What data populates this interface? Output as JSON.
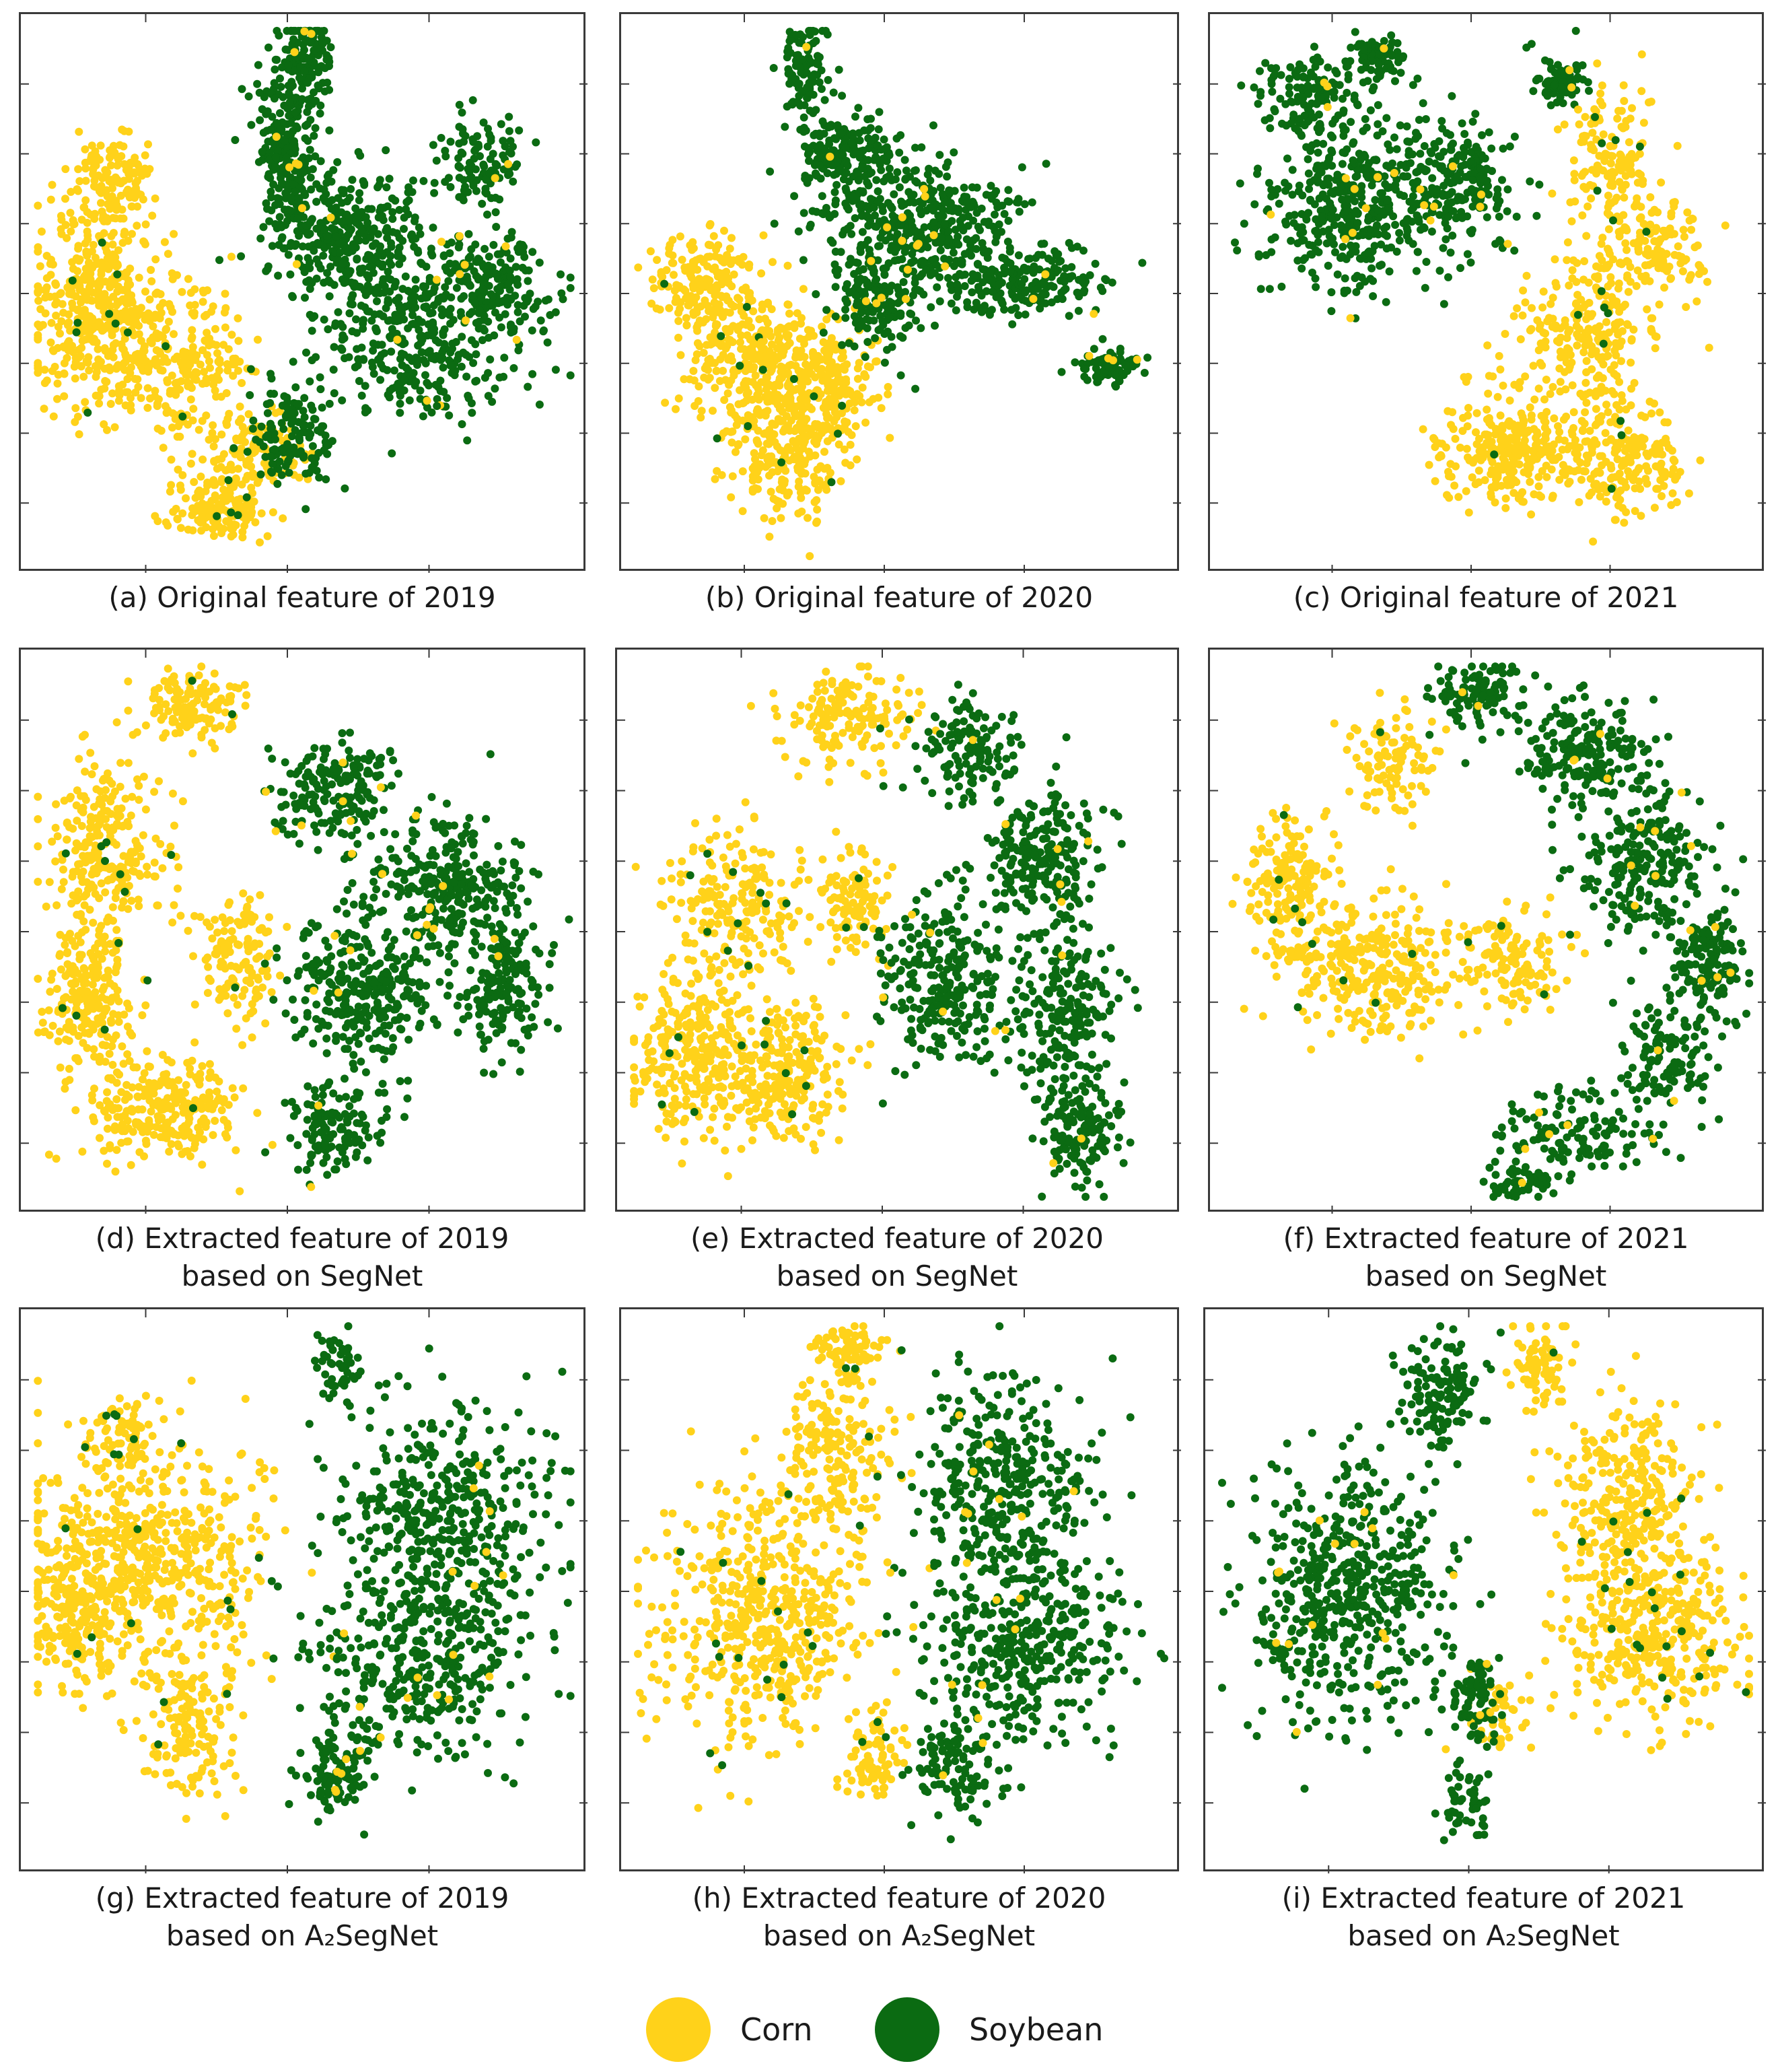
{
  "colors": {
    "corn": "#FFD21A",
    "soybean": "#0B6B12",
    "frame": "#3a3a3a"
  },
  "legend": {
    "items": [
      {
        "label": "Corn",
        "class": "corn"
      },
      {
        "label": "Soybean",
        "class": "soybean"
      }
    ]
  },
  "chart_data": [
    {
      "id": "a",
      "type": "scatter",
      "caption_line1": "(a) Original feature of 2019",
      "caption_line2": "",
      "series": [
        {
          "name": "Corn",
          "clusters": [
            [
              0.17,
              0.3,
              0.05,
              0.06,
              0.5
            ],
            [
              0.13,
              0.52,
              0.08,
              0.12,
              1.6
            ],
            [
              0.27,
              0.62,
              0.09,
              0.1,
              1.0
            ],
            [
              0.35,
              0.88,
              0.06,
              0.04,
              0.6
            ],
            [
              0.42,
              0.78,
              0.06,
              0.05,
              0.4
            ]
          ]
        },
        {
          "name": "Soybean",
          "clusters": [
            [
              0.5,
              0.08,
              0.03,
              0.06,
              0.5
            ],
            [
              0.47,
              0.25,
              0.04,
              0.1,
              0.9
            ],
            [
              0.58,
              0.4,
              0.09,
              0.08,
              1.3
            ],
            [
              0.7,
              0.58,
              0.12,
              0.1,
              1.3
            ],
            [
              0.83,
              0.48,
              0.07,
              0.07,
              0.7
            ],
            [
              0.81,
              0.27,
              0.05,
              0.06,
              0.4
            ],
            [
              0.48,
              0.75,
              0.05,
              0.07,
              0.5
            ]
          ]
        }
      ]
    },
    {
      "id": "b",
      "type": "scatter",
      "caption_line1": "(b) Original feature of 2020",
      "caption_line2": "",
      "series": [
        {
          "name": "Corn",
          "clusters": [
            [
              0.15,
              0.48,
              0.06,
              0.06,
              0.7
            ],
            [
              0.24,
              0.62,
              0.09,
              0.08,
              1.2
            ],
            [
              0.3,
              0.78,
              0.07,
              0.08,
              1.0
            ],
            [
              0.38,
              0.67,
              0.06,
              0.06,
              0.6
            ]
          ]
        },
        {
          "name": "Soybean",
          "clusters": [
            [
              0.33,
              0.1,
              0.03,
              0.06,
              0.4
            ],
            [
              0.4,
              0.25,
              0.06,
              0.05,
              0.7
            ],
            [
              0.53,
              0.38,
              0.12,
              0.08,
              1.6
            ],
            [
              0.72,
              0.48,
              0.09,
              0.04,
              0.8
            ],
            [
              0.87,
              0.63,
              0.04,
              0.02,
              0.3
            ],
            [
              0.45,
              0.52,
              0.05,
              0.06,
              0.5
            ]
          ]
        }
      ]
    },
    {
      "id": "c",
      "type": "scatter",
      "caption_line1": "(c) Original feature of 2021",
      "caption_line2": "",
      "series": [
        {
          "name": "Corn",
          "clusters": [
            [
              0.72,
              0.26,
              0.06,
              0.08,
              0.5
            ],
            [
              0.78,
              0.42,
              0.08,
              0.06,
              0.6
            ],
            [
              0.68,
              0.58,
              0.08,
              0.08,
              0.9
            ],
            [
              0.55,
              0.78,
              0.1,
              0.06,
              1.1
            ],
            [
              0.75,
              0.8,
              0.07,
              0.06,
              0.7
            ]
          ]
        },
        {
          "name": "Soybean",
          "clusters": [
            [
              0.17,
              0.15,
              0.06,
              0.05,
              0.5
            ],
            [
              0.25,
              0.35,
              0.1,
              0.1,
              1.5
            ],
            [
              0.44,
              0.3,
              0.08,
              0.08,
              0.9
            ],
            [
              0.3,
              0.08,
              0.04,
              0.03,
              0.3
            ],
            [
              0.63,
              0.12,
              0.03,
              0.03,
              0.3
            ]
          ]
        }
      ]
    },
    {
      "id": "d",
      "type": "scatter",
      "caption_line1": "(d) Extracted feature of 2019",
      "caption_line2": "based on SegNet",
      "series": [
        {
          "name": "Corn",
          "clusters": [
            [
              0.3,
              0.1,
              0.06,
              0.04,
              0.5
            ],
            [
              0.15,
              0.35,
              0.07,
              0.1,
              1.0
            ],
            [
              0.12,
              0.62,
              0.05,
              0.1,
              0.9
            ],
            [
              0.25,
              0.82,
              0.09,
              0.06,
              1.0
            ],
            [
              0.38,
              0.55,
              0.05,
              0.08,
              0.5
            ]
          ]
        },
        {
          "name": "Soybean",
          "clusters": [
            [
              0.55,
              0.25,
              0.07,
              0.06,
              0.7
            ],
            [
              0.75,
              0.42,
              0.09,
              0.08,
              1.1
            ],
            [
              0.6,
              0.6,
              0.09,
              0.09,
              1.2
            ],
            [
              0.85,
              0.6,
              0.05,
              0.08,
              0.6
            ],
            [
              0.55,
              0.85,
              0.06,
              0.05,
              0.5
            ]
          ]
        }
      ]
    },
    {
      "id": "e",
      "type": "scatter",
      "caption_line1": "(e) Extracted feature of 2020",
      "caption_line2": "based on SegNet",
      "series": [
        {
          "name": "Corn",
          "clusters": [
            [
              0.4,
              0.12,
              0.08,
              0.06,
              0.6
            ],
            [
              0.22,
              0.45,
              0.08,
              0.1,
              0.8
            ],
            [
              0.14,
              0.72,
              0.08,
              0.1,
              1.1
            ],
            [
              0.3,
              0.75,
              0.07,
              0.08,
              0.9
            ],
            [
              0.42,
              0.45,
              0.04,
              0.06,
              0.4
            ]
          ]
        },
        {
          "name": "Soybean",
          "clusters": [
            [
              0.62,
              0.18,
              0.06,
              0.06,
              0.5
            ],
            [
              0.75,
              0.38,
              0.08,
              0.08,
              0.9
            ],
            [
              0.58,
              0.58,
              0.08,
              0.1,
              1.0
            ],
            [
              0.8,
              0.65,
              0.06,
              0.1,
              0.8
            ],
            [
              0.82,
              0.85,
              0.05,
              0.06,
              0.5
            ]
          ]
        }
      ]
    },
    {
      "id": "f",
      "type": "scatter",
      "caption_line1": "(f) Extracted feature of 2021",
      "caption_line2": "based on SegNet",
      "series": [
        {
          "name": "Corn",
          "clusters": [
            [
              0.33,
              0.2,
              0.05,
              0.06,
              0.4
            ],
            [
              0.15,
              0.42,
              0.06,
              0.08,
              0.7
            ],
            [
              0.3,
              0.57,
              0.1,
              0.08,
              1.1
            ],
            [
              0.55,
              0.55,
              0.06,
              0.06,
              0.5
            ]
          ]
        },
        {
          "name": "Soybean",
          "clusters": [
            [
              0.48,
              0.08,
              0.05,
              0.04,
              0.4
            ],
            [
              0.68,
              0.18,
              0.08,
              0.06,
              0.7
            ],
            [
              0.78,
              0.38,
              0.08,
              0.1,
              0.9
            ],
            [
              0.9,
              0.55,
              0.04,
              0.06,
              0.5
            ],
            [
              0.82,
              0.72,
              0.06,
              0.08,
              0.5
            ],
            [
              0.66,
              0.86,
              0.1,
              0.05,
              0.5
            ],
            [
              0.56,
              0.94,
              0.04,
              0.02,
              0.2
            ]
          ]
        }
      ]
    },
    {
      "id": "g",
      "type": "scatter",
      "caption_line1": "(g) Extracted feature of 2019",
      "caption_line2": "based on A₂SegNet",
      "series": [
        {
          "name": "Corn",
          "clusters": [
            [
              0.22,
              0.45,
              0.14,
              0.14,
              2.2
            ],
            [
              0.1,
              0.55,
              0.06,
              0.08,
              0.6
            ],
            [
              0.3,
              0.75,
              0.06,
              0.08,
              0.5
            ],
            [
              0.18,
              0.22,
              0.05,
              0.05,
              0.3
            ]
          ]
        },
        {
          "name": "Soybean",
          "clusters": [
            [
              0.74,
              0.35,
              0.12,
              0.12,
              1.5
            ],
            [
              0.7,
              0.62,
              0.13,
              0.12,
              1.5
            ],
            [
              0.55,
              0.82,
              0.04,
              0.05,
              0.4
            ],
            [
              0.56,
              0.1,
              0.03,
              0.04,
              0.2
            ]
          ]
        }
      ]
    },
    {
      "id": "h",
      "type": "scatter",
      "caption_line1": "(h) Extracted feature of 2020",
      "caption_line2": "based on A₂SegNet",
      "series": [
        {
          "name": "Corn",
          "clusters": [
            [
              0.25,
              0.55,
              0.13,
              0.15,
              2.0
            ],
            [
              0.38,
              0.25,
              0.07,
              0.1,
              0.7
            ],
            [
              0.4,
              0.07,
              0.04,
              0.03,
              0.3
            ],
            [
              0.45,
              0.8,
              0.04,
              0.06,
              0.3
            ]
          ]
        },
        {
          "name": "Soybean",
          "clusters": [
            [
              0.68,
              0.3,
              0.1,
              0.12,
              1.3
            ],
            [
              0.72,
              0.6,
              0.12,
              0.12,
              1.5
            ],
            [
              0.6,
              0.82,
              0.06,
              0.05,
              0.4
            ]
          ]
        }
      ]
    },
    {
      "id": "i",
      "type": "scatter",
      "caption_line1": "(i) Extracted feature of 2021",
      "caption_line2": "based on A₂SegNet",
      "series": [
        {
          "name": "Corn",
          "clusters": [
            [
              0.76,
              0.35,
              0.08,
              0.12,
              1.2
            ],
            [
              0.8,
              0.58,
              0.1,
              0.1,
              1.3
            ],
            [
              0.6,
              0.1,
              0.04,
              0.05,
              0.3
            ],
            [
              0.52,
              0.72,
              0.04,
              0.04,
              0.2
            ]
          ]
        },
        {
          "name": "Soybean",
          "clusters": [
            [
              0.25,
              0.5,
              0.12,
              0.15,
              2.0
            ],
            [
              0.42,
              0.15,
              0.05,
              0.06,
              0.5
            ],
            [
              0.48,
              0.7,
              0.03,
              0.05,
              0.3
            ],
            [
              0.46,
              0.88,
              0.03,
              0.04,
              0.2
            ]
          ]
        }
      ]
    }
  ]
}
